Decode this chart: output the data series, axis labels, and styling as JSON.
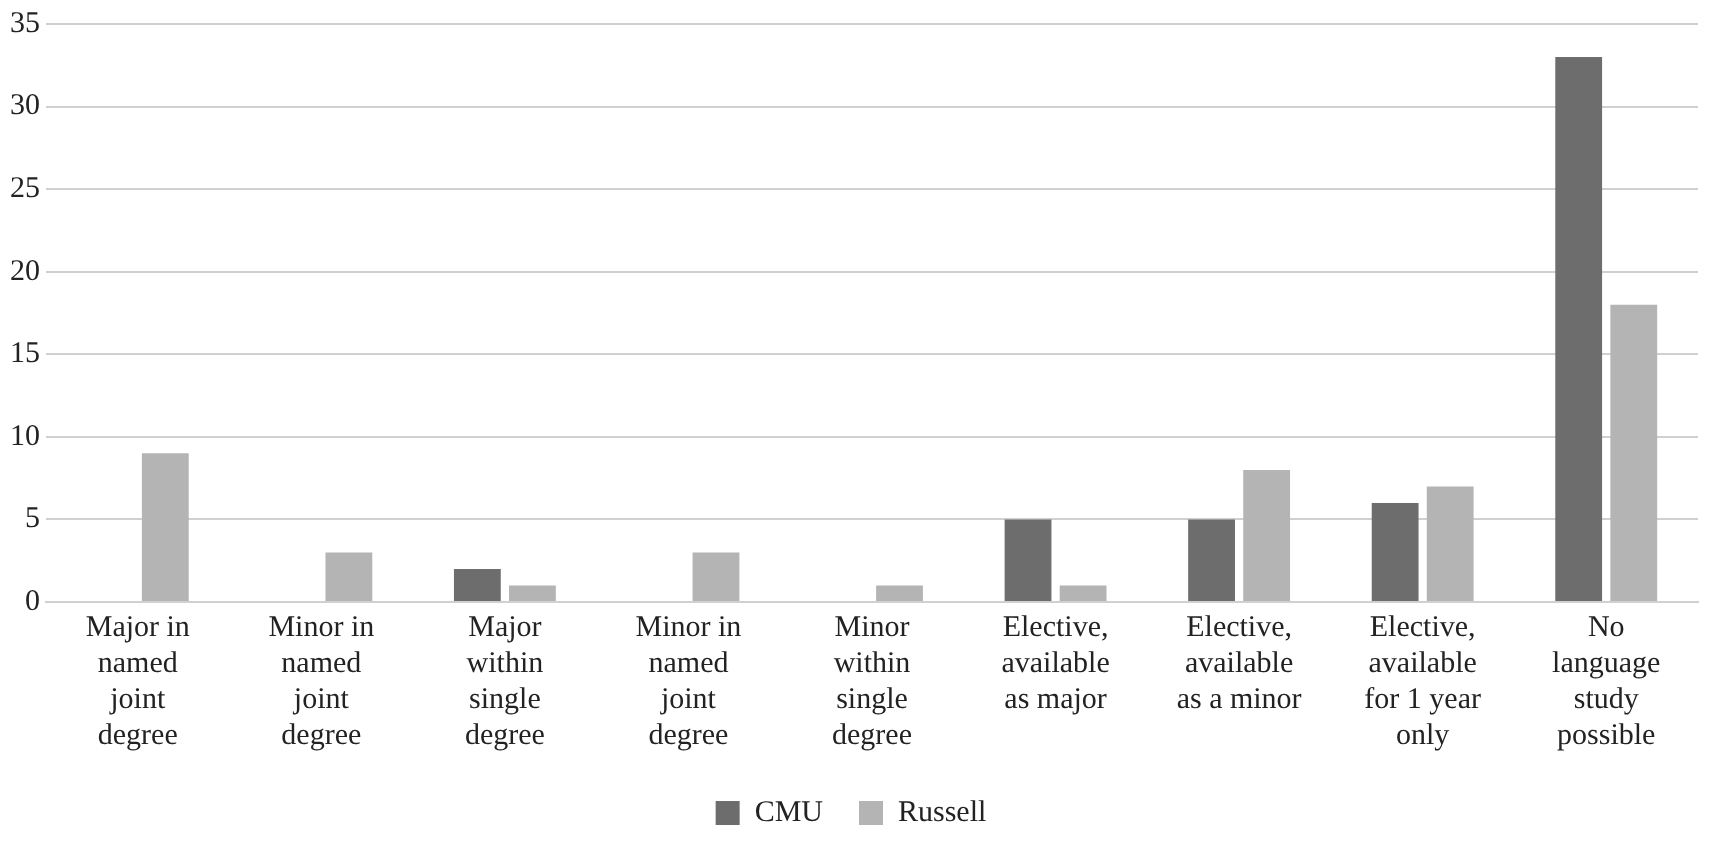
{
  "chart_data": {
    "type": "bar",
    "categories": [
      "Major in named joint degree",
      "Minor in named joint degree",
      "Major within single degree",
      "Minor in named joint degree",
      "Minor within single degree",
      "Elective, available as major",
      "Elective, available as a minor",
      "Elective, available for 1 year only",
      "No language study possible"
    ],
    "series": [
      {
        "name": "CMU",
        "color": "#6d6d6d",
        "values": [
          0,
          0,
          2,
          0,
          0,
          5,
          5,
          6,
          33
        ]
      },
      {
        "name": "Russell",
        "color": "#b4b4b4",
        "values": [
          9,
          3,
          1,
          3,
          1,
          1,
          8,
          7,
          18
        ]
      }
    ],
    "ylim": [
      0,
      35
    ],
    "yticks": [
      0,
      5,
      10,
      15,
      20,
      25,
      30,
      35
    ],
    "grid": "y",
    "legend": "bottom"
  }
}
